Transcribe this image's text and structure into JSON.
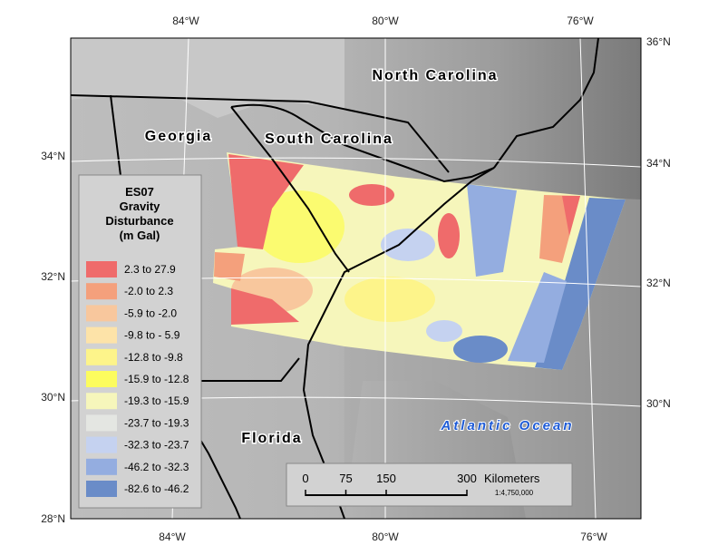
{
  "map": {
    "graticule": {
      "top": [
        "84°W",
        "80°W",
        "76°W"
      ],
      "bottom": [
        "84°W",
        "80°W",
        "76°W"
      ],
      "left": [
        "34°N",
        "32°N",
        "30°N",
        "28°N"
      ],
      "right": [
        "36°N",
        "34°N",
        "32°N",
        "30°N"
      ]
    },
    "labels": {
      "north_carolina": "North Carolina",
      "georgia": "Georgia",
      "south_carolina": "South Carolina",
      "florida": "Florida",
      "ocean": "Atlantic Ocean"
    },
    "legend": {
      "title": [
        "ES07",
        "Gravity",
        "Disturbance",
        "(m Gal)"
      ],
      "items": [
        {
          "label": "2.3 to 27.9",
          "color": "#ef6b6b"
        },
        {
          "label": "-2.0 to 2.3",
          "color": "#f4a07c"
        },
        {
          "label": "-5.9 to -2.0",
          "color": "#f8c79d"
        },
        {
          "label": "-9.8 to - 5.9",
          "color": "#fde3a8"
        },
        {
          "label": "-12.8 to -9.8",
          "color": "#fdf48a"
        },
        {
          "label": "-15.9 to -12.8",
          "color": "#fcfc5e"
        },
        {
          "label": "-19.3 to -15.9",
          "color": "#f6f6bb"
        },
        {
          "label": "-23.7 to -19.3",
          "color": "#e4e6e2"
        },
        {
          "label": "-32.3 to -23.7",
          "color": "#c5d2f0"
        },
        {
          "label": "-46.2 to -32.3",
          "color": "#94ade0"
        },
        {
          "label": "-82.6 to -46.2",
          "color": "#6a8cc8"
        }
      ]
    },
    "scale_bar": {
      "ticks": [
        0,
        75,
        150,
        300
      ],
      "unit": "Kilometers",
      "ratio": "1:4,750,000"
    }
  }
}
